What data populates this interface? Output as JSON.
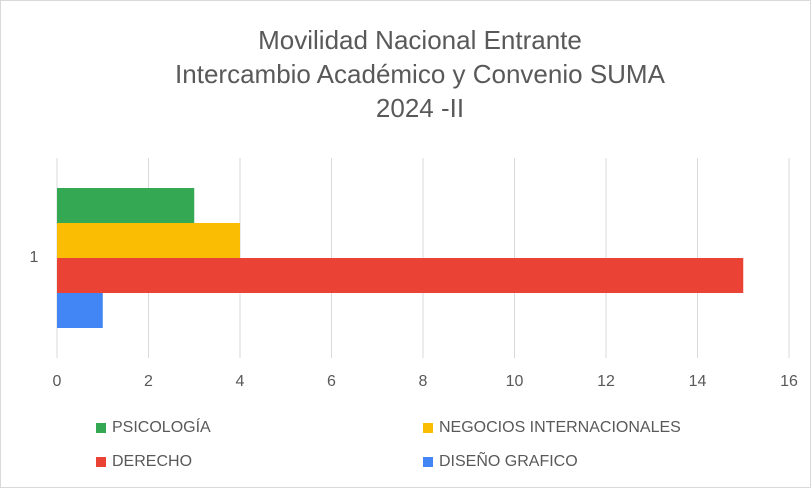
{
  "chart_data": {
    "type": "bar",
    "orientation": "horizontal",
    "title": [
      "Movilidad Nacional Entrante",
      "Intercambio Académico y Convenio SUMA",
      "2024 -II"
    ],
    "categories": [
      "1"
    ],
    "series": [
      {
        "name": "PSICOLOGÍA",
        "color": "#34a853",
        "values": [
          3
        ]
      },
      {
        "name": "NEGOCIOS INTERNACIONALES",
        "color": "#fbbc04",
        "values": [
          4
        ]
      },
      {
        "name": "DERECHO",
        "color": "#ea4335",
        "values": [
          15
        ]
      },
      {
        "name": "DISEÑO GRAFICO",
        "color": "#4285f4",
        "values": [
          1
        ]
      }
    ],
    "xlim": [
      0,
      16
    ],
    "xticks": [
      0,
      2,
      4,
      6,
      8,
      10,
      12,
      14,
      16
    ],
    "grid": true,
    "legend": "bottom"
  }
}
